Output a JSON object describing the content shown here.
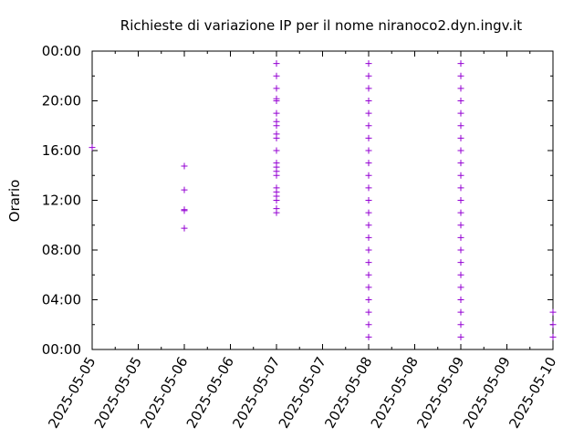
{
  "chart_data": {
    "type": "scatter",
    "title": "Richieste di variazione IP per il nome niranoco2.dyn.ingv.it",
    "xlabel": "",
    "ylabel": "Orario",
    "xlim": [
      "2025-05-05 00:00",
      "2025-05-10 00:00"
    ],
    "ylim": [
      "00:00",
      "24:00"
    ],
    "x_tick_labels": [
      "2025-05-05",
      "2025-05-05",
      "2025-05-06",
      "2025-05-06",
      "2025-05-07",
      "2025-05-07",
      "2025-05-08",
      "2025-05-08",
      "2025-05-09",
      "2025-05-09",
      "2025-05-10"
    ],
    "y_tick_labels": [
      "00:00",
      "04:00",
      "08:00",
      "12:00",
      "16:00",
      "20:00",
      "00:00"
    ],
    "marker": "+",
    "marker_color": "#9400D3",
    "grid": false,
    "series": [
      {
        "points": [
          [
            "2025-05-05",
            "16:15"
          ],
          [
            "2025-05-06",
            "09:45"
          ],
          [
            "2025-05-06",
            "11:10"
          ],
          [
            "2025-05-06",
            "11:15"
          ],
          [
            "2025-05-06",
            "12:50"
          ],
          [
            "2025-05-06",
            "14:45"
          ],
          [
            "2025-05-07",
            "11:00"
          ],
          [
            "2025-05-07",
            "11:20"
          ],
          [
            "2025-05-07",
            "12:00"
          ],
          [
            "2025-05-07",
            "12:20"
          ],
          [
            "2025-05-07",
            "12:40"
          ],
          [
            "2025-05-07",
            "13:00"
          ],
          [
            "2025-05-07",
            "14:00"
          ],
          [
            "2025-05-07",
            "14:20"
          ],
          [
            "2025-05-07",
            "14:40"
          ],
          [
            "2025-05-07",
            "15:00"
          ],
          [
            "2025-05-07",
            "16:00"
          ],
          [
            "2025-05-07",
            "17:00"
          ],
          [
            "2025-05-07",
            "17:20"
          ],
          [
            "2025-05-07",
            "18:00"
          ],
          [
            "2025-05-07",
            "18:20"
          ],
          [
            "2025-05-07",
            "19:00"
          ],
          [
            "2025-05-07",
            "20:00"
          ],
          [
            "2025-05-07",
            "20:10"
          ],
          [
            "2025-05-07",
            "21:00"
          ],
          [
            "2025-05-07",
            "22:00"
          ],
          [
            "2025-05-07",
            "23:00"
          ],
          [
            "2025-05-08",
            "01:00"
          ],
          [
            "2025-05-08",
            "02:00"
          ],
          [
            "2025-05-08",
            "03:00"
          ],
          [
            "2025-05-08",
            "04:00"
          ],
          [
            "2025-05-08",
            "05:00"
          ],
          [
            "2025-05-08",
            "06:00"
          ],
          [
            "2025-05-08",
            "07:00"
          ],
          [
            "2025-05-08",
            "08:00"
          ],
          [
            "2025-05-08",
            "09:00"
          ],
          [
            "2025-05-08",
            "10:00"
          ],
          [
            "2025-05-08",
            "11:00"
          ],
          [
            "2025-05-08",
            "12:00"
          ],
          [
            "2025-05-08",
            "13:00"
          ],
          [
            "2025-05-08",
            "14:00"
          ],
          [
            "2025-05-08",
            "15:00"
          ],
          [
            "2025-05-08",
            "16:00"
          ],
          [
            "2025-05-08",
            "17:00"
          ],
          [
            "2025-05-08",
            "18:00"
          ],
          [
            "2025-05-08",
            "19:00"
          ],
          [
            "2025-05-08",
            "20:00"
          ],
          [
            "2025-05-08",
            "21:00"
          ],
          [
            "2025-05-08",
            "22:00"
          ],
          [
            "2025-05-08",
            "23:00"
          ],
          [
            "2025-05-09",
            "01:00"
          ],
          [
            "2025-05-09",
            "02:00"
          ],
          [
            "2025-05-09",
            "03:00"
          ],
          [
            "2025-05-09",
            "04:00"
          ],
          [
            "2025-05-09",
            "05:00"
          ],
          [
            "2025-05-09",
            "06:00"
          ],
          [
            "2025-05-09",
            "07:00"
          ],
          [
            "2025-05-09",
            "08:00"
          ],
          [
            "2025-05-09",
            "09:00"
          ],
          [
            "2025-05-09",
            "10:00"
          ],
          [
            "2025-05-09",
            "11:00"
          ],
          [
            "2025-05-09",
            "12:00"
          ],
          [
            "2025-05-09",
            "13:00"
          ],
          [
            "2025-05-09",
            "14:00"
          ],
          [
            "2025-05-09",
            "15:00"
          ],
          [
            "2025-05-09",
            "16:00"
          ],
          [
            "2025-05-09",
            "17:00"
          ],
          [
            "2025-05-09",
            "18:00"
          ],
          [
            "2025-05-09",
            "19:00"
          ],
          [
            "2025-05-09",
            "20:00"
          ],
          [
            "2025-05-09",
            "21:00"
          ],
          [
            "2025-05-09",
            "22:00"
          ],
          [
            "2025-05-09",
            "23:00"
          ],
          [
            "2025-05-10",
            "01:00"
          ],
          [
            "2025-05-10",
            "02:00"
          ],
          [
            "2025-05-10",
            "03:00"
          ]
        ]
      }
    ]
  }
}
